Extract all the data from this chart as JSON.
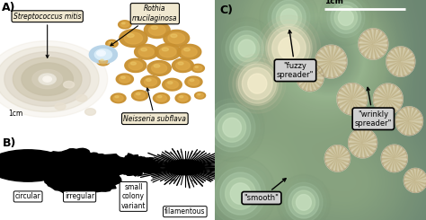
{
  "panel_A_bg": "#c8796a",
  "panel_B_bg": "#ffffff",
  "panel_C_bg": "#8a9e8a",
  "label_A": "A)",
  "label_B": "B)",
  "label_C": "C)",
  "ann_streptococcus": "Streptococcus mitis",
  "ann_rothia": "Rothia\nmucilaginosa",
  "ann_neisseria": "Neisseria subflava",
  "ann_fuzzy": "\"fuzzy\nspreader\"",
  "ann_wrinkly": "\"wrinkly\nspreader\"",
  "ann_smooth": "\"smooth\"",
  "scale_bar": "1cm",
  "labels_B": [
    "circular",
    "irregular",
    "small\ncolony\nvariant",
    "filamentous"
  ],
  "black": "#000000",
  "white": "#ffffff",
  "label_box_color_A": "#f0e8d0",
  "label_box_color_C": "#d0d0d0",
  "colony_golden": "#c89830",
  "colony_golden_hi": "#e0b848",
  "colony_white_outer": "#e0d8c8",
  "colony_white_mid": "#d8d0b8",
  "colony_white_center": "#f0ece0",
  "colony_rothia": "#c8e0f0",
  "colony_rothia_hi": "#e8f4ff",
  "smooth_col1": "#8aaa8a",
  "smooth_col2": "#a0b898",
  "wrinkly_base": "#e8e0d0",
  "wrinkly_dark": "#b8a880",
  "fuzzy_base": "#d8d0b8",
  "fuzzy_edge": "#c8c0a0"
}
